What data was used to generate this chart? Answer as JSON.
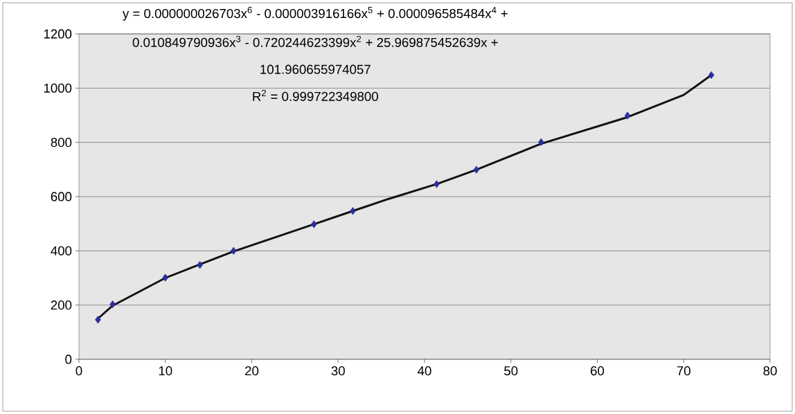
{
  "chart_data": {
    "type": "scatter",
    "annotations": [
      "y = 0.000000026703x$^{6}$ - 0.000003916166x$^{5}$ + 0.000096585484x$^{4}$ +",
      "0.010849790936x$^{3}$ - 0.720244623399x$^{2}$ + 25.969875452639x +",
      "101.960655974057",
      "R$^{2}$ = 0.999722349800"
    ],
    "series": [
      {
        "color": "#2b2f9c",
        "marker": "diamond",
        "x": [
          2.2,
          3.9,
          10,
          14,
          17.9,
          27.2,
          31.7,
          41.4,
          46,
          53.5,
          63.5,
          73.2
        ],
        "values": [
          146,
          203,
          301,
          348,
          400,
          498,
          547,
          646,
          699,
          801,
          899,
          1048
        ]
      },
      {
        "type": "line",
        "color": "#111111",
        "marker": "none",
        "x": [
          2.2,
          3.9,
          10,
          14,
          17.9,
          27.2,
          31.7,
          36,
          41.4,
          46,
          53.5,
          63.5,
          70,
          73.2
        ],
        "values": [
          150,
          198,
          300,
          350,
          398,
          498,
          547,
          593,
          646,
          699,
          795,
          893,
          975,
          1048
        ]
      }
    ],
    "xlim": [
      0,
      80
    ],
    "ylim": [
      0,
      1200
    ],
    "xticks": [
      0,
      10,
      20,
      30,
      40,
      50,
      60,
      70,
      80
    ],
    "yticks": [
      0,
      200,
      400,
      600,
      800,
      1000,
      1200
    ],
    "grid": "y"
  }
}
